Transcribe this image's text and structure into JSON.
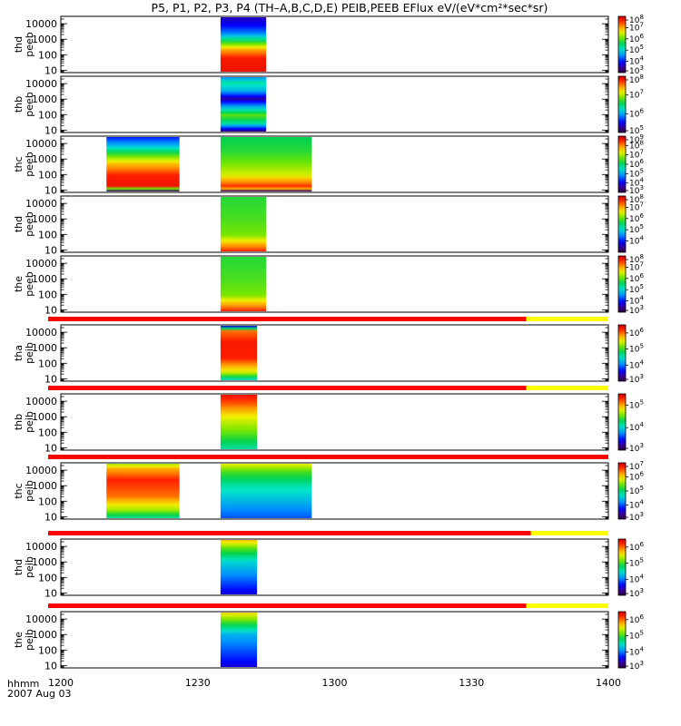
{
  "chart_data": {
    "type": "heatmap",
    "title": "P5, P1, P2, P3, P4 (TH–A,B,C,D,E) PEIB,PEEB EFlux eV/(eV*cm²*sec*sr)",
    "time_axis": {
      "label_top": "hhmm",
      "label_bottom": "2007 Aug 03",
      "range": [
        "12:00",
        "14:00"
      ],
      "tick_labels": [
        "1200",
        "1230",
        "1300",
        "1330",
        "1400"
      ]
    },
    "y_scale": "log",
    "y_ticks": [
      "10",
      "100",
      "1000",
      "10000"
    ],
    "flag_bar_colors": {
      "on": "#ff0000",
      "off": "#ffff00"
    },
    "panels": [
      {
        "label_line1": "thd",
        "label_line2": "peeb",
        "ylim": [
          7,
          30000
        ],
        "colorbar": {
          "min_exp": 3,
          "max_exp": 8,
          "tick_exps": [
            3,
            4,
            5,
            6,
            7,
            8
          ]
        },
        "data_blocks": [
          {
            "t_start": "12:35",
            "t_end": "12:45",
            "profile": "eeb_a"
          }
        ],
        "flag_bar": null
      },
      {
        "label_line1": "thb",
        "label_line2": "peeb",
        "ylim": [
          7,
          30000
        ],
        "colorbar": {
          "min_exp": 5,
          "max_exp": 8,
          "tick_exps": [
            5,
            6,
            7,
            8
          ]
        },
        "data_blocks": [
          {
            "t_start": "12:35",
            "t_end": "12:45",
            "profile": "eeb_b"
          }
        ],
        "flag_bar": null
      },
      {
        "label_line1": "thc",
        "label_line2": "peeb",
        "ylim": [
          7,
          30000
        ],
        "colorbar": {
          "min_exp": 3,
          "max_exp": 9,
          "tick_exps": [
            3,
            4,
            5,
            6,
            7,
            8,
            9
          ]
        },
        "data_blocks": [
          {
            "t_start": "12:10",
            "t_end": "12:26",
            "profile": "eeb_c1"
          },
          {
            "t_start": "12:35",
            "t_end": "12:55",
            "profile": "eeb_c2"
          }
        ],
        "flag_bar": null
      },
      {
        "label_line1": "thd",
        "label_line2": "peeb",
        "ylim": [
          7,
          30000
        ],
        "colorbar": {
          "min_exp": 3,
          "max_exp": 8,
          "tick_exps": [
            4,
            5,
            6,
            7,
            8
          ]
        },
        "data_blocks": [
          {
            "t_start": "12:35",
            "t_end": "12:45",
            "profile": "eeb_d"
          }
        ],
        "flag_bar": null
      },
      {
        "label_line1": "the",
        "label_line2": "peeb",
        "ylim": [
          7,
          30000
        ],
        "colorbar": {
          "min_exp": 3,
          "max_exp": 8,
          "tick_exps": [
            3,
            4,
            5,
            6,
            7,
            8
          ]
        },
        "data_blocks": [
          {
            "t_start": "12:35",
            "t_end": "12:45",
            "profile": "eeb_d"
          }
        ],
        "flag_bar": {
          "red_until": "13:42"
        }
      },
      {
        "label_line1": "tha",
        "label_line2": "peib",
        "ylim": [
          7,
          30000
        ],
        "colorbar": {
          "min_exp": 3,
          "max_exp": 6.5,
          "tick_exps": [
            3,
            4,
            5,
            6
          ]
        },
        "data_blocks": [
          {
            "t_start": "12:35",
            "t_end": "12:43",
            "profile": "eib_a"
          }
        ],
        "flag_bar": {
          "red_until": "13:42"
        }
      },
      {
        "label_line1": "thb",
        "label_line2": "peib",
        "ylim": [
          7,
          30000
        ],
        "colorbar": {
          "min_exp": 3,
          "max_exp": 5.5,
          "tick_exps": [
            3,
            4,
            5
          ]
        },
        "data_blocks": [
          {
            "t_start": "12:35",
            "t_end": "12:43",
            "profile": "eib_b"
          }
        ],
        "flag_bar": {
          "red_until": "14:00"
        }
      },
      {
        "label_line1": "thc",
        "label_line2": "peib",
        "ylim": [
          7,
          30000
        ],
        "colorbar": {
          "min_exp": 3,
          "max_exp": 7,
          "tick_exps": [
            3,
            4,
            5,
            6,
            7
          ]
        },
        "data_blocks": [
          {
            "t_start": "12:10",
            "t_end": "12:26",
            "profile": "eib_c1"
          },
          {
            "t_start": "12:35",
            "t_end": "12:55",
            "profile": "eib_c2"
          }
        ],
        "flag_bar": {
          "red_until": "13:43"
        }
      },
      {
        "label_line1": "thd",
        "label_line2": "peib",
        "ylim": [
          7,
          30000
        ],
        "colorbar": {
          "min_exp": 3,
          "max_exp": 6.5,
          "tick_exps": [
            3,
            4,
            5,
            6
          ]
        },
        "data_blocks": [
          {
            "t_start": "12:35",
            "t_end": "12:43",
            "profile": "eib_d"
          }
        ],
        "flag_bar": {
          "red_until": "13:42"
        }
      },
      {
        "label_line1": "the",
        "label_line2": "peib",
        "ylim": [
          7,
          30000
        ],
        "colorbar": {
          "min_exp": 3,
          "max_exp": 6.5,
          "tick_exps": [
            3,
            4,
            5,
            6
          ]
        },
        "data_blocks": [
          {
            "t_start": "12:35",
            "t_end": "12:43",
            "profile": "eib_e"
          }
        ],
        "flag_bar": null
      }
    ]
  }
}
